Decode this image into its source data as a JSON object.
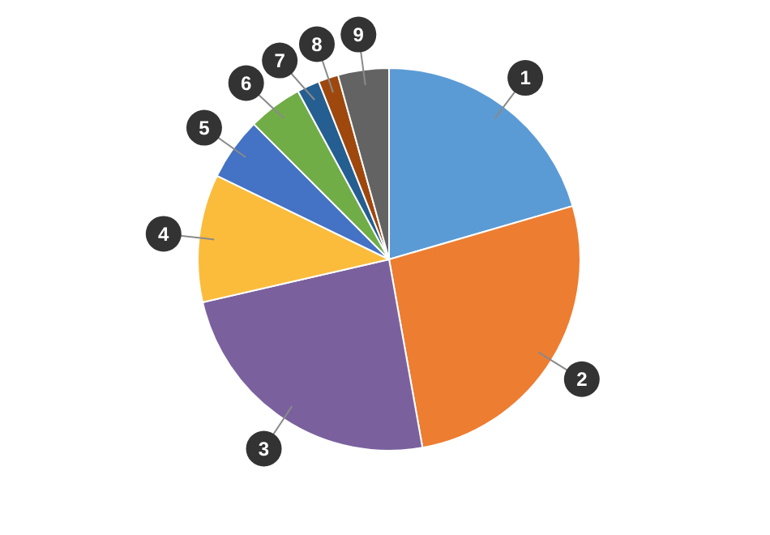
{
  "chart_data": {
    "type": "pie",
    "categories": [
      "1",
      "2",
      "3",
      "4",
      "5",
      "6",
      "7",
      "8",
      "9"
    ],
    "values": [
      20.5,
      26.7,
      24.2,
      10.8,
      5.3,
      4.6,
      1.9,
      1.7,
      4.3
    ],
    "colors": [
      "#5b9bd5",
      "#ed7d31",
      "#7a619e",
      "#fbbc3c",
      "#4472c4",
      "#70ad47",
      "#255e91",
      "#9e480e",
      "#636363"
    ]
  }
}
